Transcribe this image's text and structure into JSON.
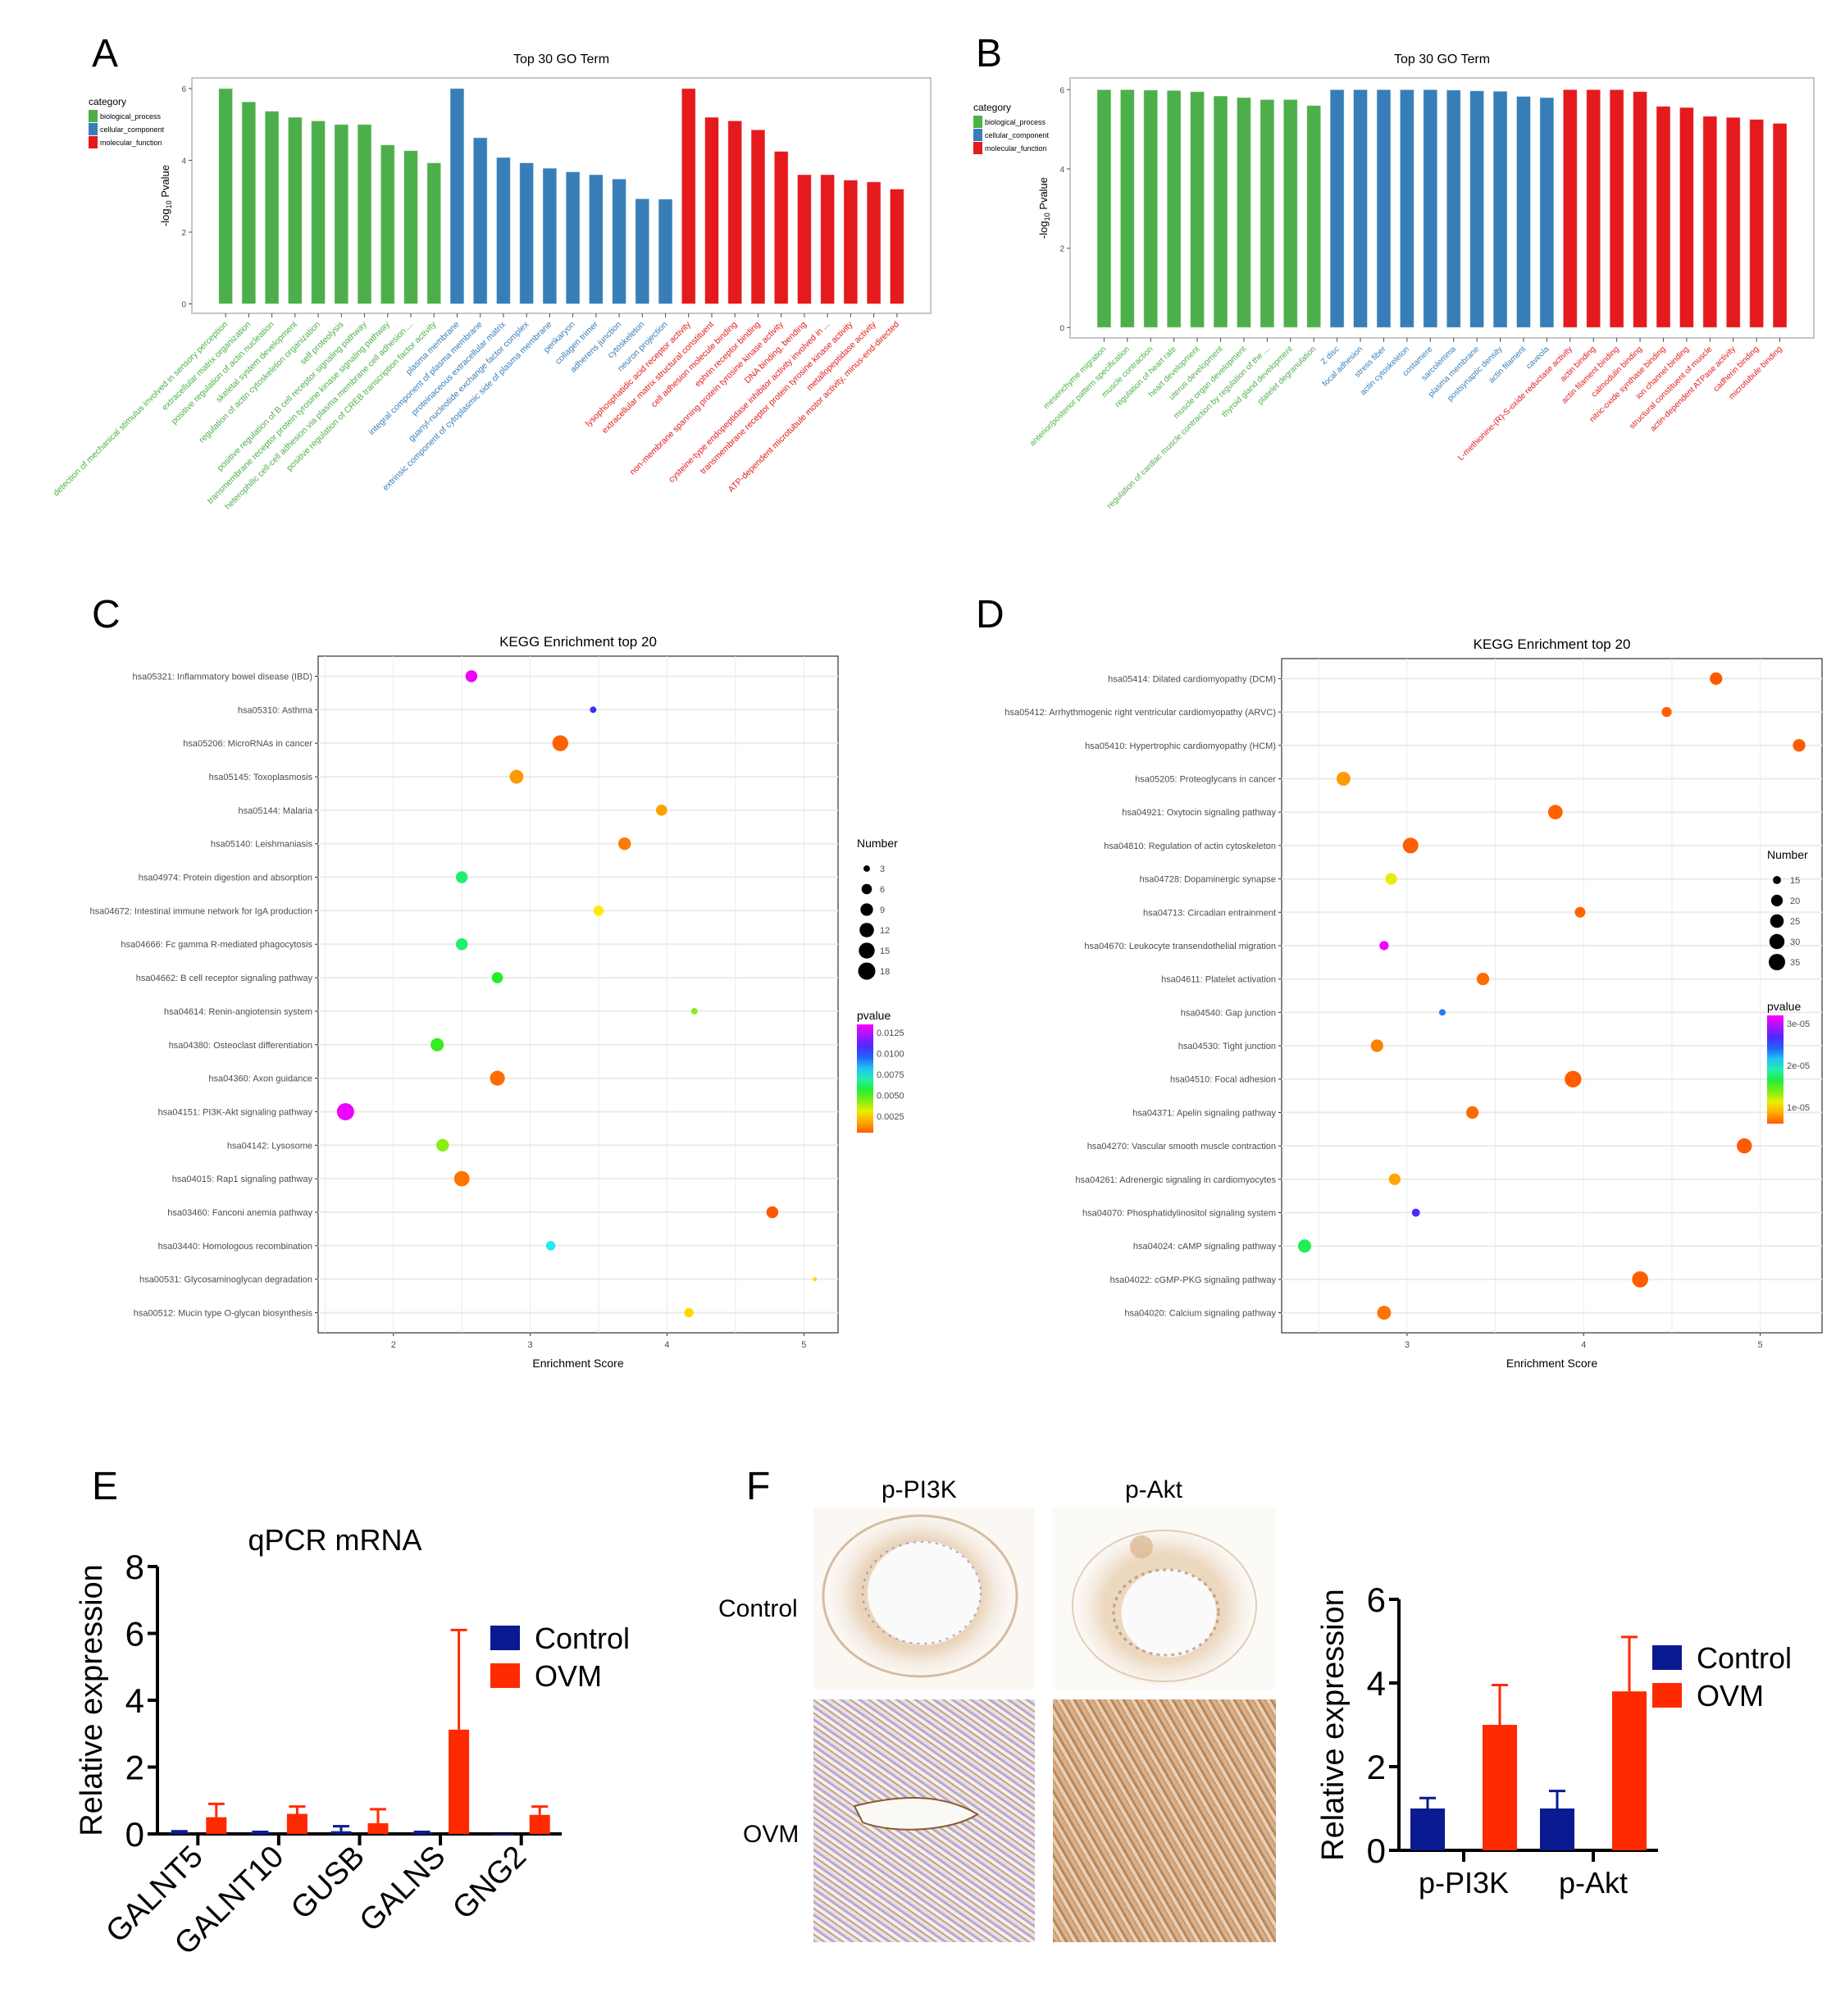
{
  "panels": {
    "a": "A",
    "b": "B",
    "c": "C",
    "d": "D",
    "e": "E",
    "f": "F"
  },
  "colors": {
    "biological_process": "#4daf4a",
    "cellular_component": "#377eb8",
    "molecular_function": "#e41a1c",
    "control": "#0a1a91",
    "ovm": "#ff2a00"
  },
  "ihc": {
    "columns": [
      "p-PI3K",
      "p-Akt"
    ],
    "rows": [
      "Control",
      "OVM"
    ]
  },
  "chart_data": [
    {
      "id": "A",
      "type": "bar",
      "title": "Top 30 GO Term",
      "xlabel": "",
      "ylabel": "-log10 Pvalue",
      "ylim": [
        0,
        6.2
      ],
      "yticks": [
        0,
        2,
        4,
        6
      ],
      "legend": {
        "title": "category",
        "position": "left",
        "entries": [
          "biological_process",
          "cellular_component",
          "molecular_function"
        ]
      },
      "categories": [
        "detection of mechanical stimulus involved in sensory perception",
        "extracellular matrix organization",
        "positive regulation of actin nucleation",
        "skeletal system development",
        "regulation of actin cytoskeleton organization",
        "self proteolysis",
        "positive regulation of B cell receptor signaling pathway",
        "transmembrane receptor protein tyrosine kinase signaling pathway",
        "heterophilic cell-cell adhesion via plasma membrane cell adhesion ...",
        "positive regulation of CREB transcription factor activity",
        "plasma membrane",
        "integral component of plasma membrane",
        "proteinaceous extracellular matrix",
        "guanyl-nucleotide exchange factor complex",
        "extrinsic component of cytoplasmic side of plasma membrane",
        "perikaryon",
        "collagen trimer",
        "adherens junction",
        "cytoskeleton",
        "neuron projection",
        "lysophosphatidic acid receptor activity",
        "extracellular matrix structural constituent",
        "cell adhesion molecule binding",
        "ephrin receptor binding",
        "non-membrane spanning protein tyrosine kinase activity",
        "DNA binding, bending",
        "cysteine-type endopeptidase inhibitor activity involved in ...",
        "transmembrane receptor protein tyrosine kinase activity",
        "metallopeptidase activity",
        "ATP-dependent microtubule motor activity, minus-end-directed"
      ],
      "category_groups": [
        "biological_process",
        "biological_process",
        "biological_process",
        "biological_process",
        "biological_process",
        "biological_process",
        "biological_process",
        "biological_process",
        "biological_process",
        "biological_process",
        "cellular_component",
        "cellular_component",
        "cellular_component",
        "cellular_component",
        "cellular_component",
        "cellular_component",
        "cellular_component",
        "cellular_component",
        "cellular_component",
        "cellular_component",
        "molecular_function",
        "molecular_function",
        "molecular_function",
        "molecular_function",
        "molecular_function",
        "molecular_function",
        "molecular_function",
        "molecular_function",
        "molecular_function",
        "molecular_function"
      ],
      "values": [
        6.0,
        5.63,
        5.37,
        5.2,
        5.1,
        5.0,
        5.0,
        4.43,
        4.27,
        3.93,
        6.0,
        4.63,
        4.08,
        3.93,
        3.78,
        3.68,
        3.6,
        3.48,
        2.93,
        2.92,
        6.0,
        5.2,
        5.1,
        4.85,
        4.25,
        3.6,
        3.6,
        3.45,
        3.4,
        3.2
      ]
    },
    {
      "id": "B",
      "type": "bar",
      "title": "Top 30 GO Term",
      "xlabel": "",
      "ylabel": "-log10 Pvalue",
      "ylim": [
        0,
        6.2
      ],
      "yticks": [
        0,
        2,
        4,
        6
      ],
      "legend": {
        "title": "category",
        "position": "left",
        "entries": [
          "biological_process",
          "cellular_component",
          "molecular_function"
        ]
      },
      "categories": [
        "mesenchyme migration",
        "anterior/posterior pattern specification",
        "muscle contraction",
        "regulation of heart rate",
        "heart development",
        "uterus development",
        "muscle organ development",
        "regulation of cardiac muscle contraction by regulation of the ...",
        "thyroid gland development",
        "platelet degranulation",
        "Z disc",
        "focal adhesion",
        "stress fiber",
        "actin cytoskeleton",
        "costamere",
        "sarcolemma",
        "plasma membrane",
        "postsynaptic density",
        "actin filament",
        "caveola",
        "L-methionine-(R)-S-oxide reductase activity",
        "actin binding",
        "actin filament binding",
        "calmodulin binding",
        "nitric-oxide synthase binding",
        "ion channel binding",
        "structural constituent of muscle",
        "actin-dependent ATPase activity",
        "cadherin binding",
        "microtubule binding"
      ],
      "category_groups": [
        "biological_process",
        "biological_process",
        "biological_process",
        "biological_process",
        "biological_process",
        "biological_process",
        "biological_process",
        "biological_process",
        "biological_process",
        "biological_process",
        "cellular_component",
        "cellular_component",
        "cellular_component",
        "cellular_component",
        "cellular_component",
        "cellular_component",
        "cellular_component",
        "cellular_component",
        "cellular_component",
        "cellular_component",
        "molecular_function",
        "molecular_function",
        "molecular_function",
        "molecular_function",
        "molecular_function",
        "molecular_function",
        "molecular_function",
        "molecular_function",
        "molecular_function",
        "molecular_function"
      ],
      "values": [
        6.0,
        6.0,
        5.99,
        5.98,
        5.95,
        5.84,
        5.8,
        5.75,
        5.75,
        5.6,
        6.0,
        6.0,
        6.0,
        6.0,
        6.0,
        5.99,
        5.97,
        5.96,
        5.83,
        5.8,
        6.0,
        6.0,
        6.0,
        5.95,
        5.58,
        5.55,
        5.33,
        5.3,
        5.25,
        5.15
      ]
    },
    {
      "id": "C",
      "type": "scatter",
      "title": "KEGG Enrichment top 20",
      "xlabel": "Enrichment Score",
      "ylabel": "",
      "xlim": [
        1.45,
        5.25
      ],
      "xticks": [
        2,
        3,
        4,
        5
      ],
      "grid": true,
      "size_legend": {
        "title": "Number",
        "values": [
          3,
          6,
          9,
          12,
          15,
          18
        ],
        "position": "right"
      },
      "color_legend": {
        "title": "pvalue",
        "ticks": [
          "0.0125",
          "0.0100",
          "0.0075",
          "0.0050",
          "0.0025"
        ],
        "range": [
          0.0005,
          0.0135
        ],
        "position": "right"
      },
      "points": [
        {
          "term": "hsa05321: Inflammatory bowel disease (IBD)",
          "x": 2.57,
          "number": 8,
          "pvalue": 0.0132
        },
        {
          "term": "hsa05310: Asthma",
          "x": 3.46,
          "number": 3,
          "pvalue": 0.0105
        },
        {
          "term": "hsa05206: MicroRNAs in cancer",
          "x": 3.22,
          "number": 15,
          "pvalue": 0.0006
        },
        {
          "term": "hsa05145: Toxoplasmosis",
          "x": 2.9,
          "number": 11,
          "pvalue": 0.0015
        },
        {
          "term": "hsa05144: Malaria",
          "x": 3.96,
          "number": 7,
          "pvalue": 0.0016
        },
        {
          "term": "hsa05140: Leishmaniasis",
          "x": 3.69,
          "number": 9,
          "pvalue": 0.001
        },
        {
          "term": "hsa04974: Protein digestion and absorption",
          "x": 2.5,
          "number": 8,
          "pvalue": 0.0063
        },
        {
          "term": "hsa04672: Intestinal immune network for IgA production",
          "x": 3.5,
          "number": 6,
          "pvalue": 0.0028
        },
        {
          "term": "hsa04666: Fc gamma R-mediated phagocytosis",
          "x": 2.5,
          "number": 8,
          "pvalue": 0.0063
        },
        {
          "term": "hsa04662: B cell receptor signaling pathway",
          "x": 2.76,
          "number": 7,
          "pvalue": 0.0055
        },
        {
          "term": "hsa04614: Renin-angiotensin system",
          "x": 4.2,
          "number": 3,
          "pvalue": 0.0043
        },
        {
          "term": "hsa04380: Osteoclast differentiation",
          "x": 2.32,
          "number": 10,
          "pvalue": 0.0052
        },
        {
          "term": "hsa04360: Axon guidance",
          "x": 2.76,
          "number": 13,
          "pvalue": 0.0008
        },
        {
          "term": "hsa04151: PI3K-Akt signaling pathway",
          "x": 1.65,
          "number": 18,
          "pvalue": 0.0132
        },
        {
          "term": "hsa04142: Lysosome",
          "x": 2.36,
          "number": 9,
          "pvalue": 0.0042
        },
        {
          "term": "hsa04015: Rap1 signaling pathway",
          "x": 2.5,
          "number": 14,
          "pvalue": 0.0009
        },
        {
          "term": "hsa03460: Fanconi anemia pathway",
          "x": 4.77,
          "number": 8,
          "pvalue": 0.0005
        },
        {
          "term": "hsa03440: Homologous recombination",
          "x": 3.15,
          "number": 5,
          "pvalue": 0.0077
        },
        {
          "term": "hsa00531: Glycosaminoglycan degradation",
          "x": 5.08,
          "number": 2,
          "pvalue": 0.0025
        },
        {
          "term": "hsa00512: Mucin type O-glycan biosynthesis",
          "x": 4.16,
          "number": 5,
          "pvalue": 0.0025
        }
      ]
    },
    {
      "id": "D",
      "type": "scatter",
      "title": "KEGG Enrichment top 20",
      "xlabel": "Enrichment Score",
      "ylabel": "",
      "xlim": [
        2.29,
        5.35
      ],
      "xticks": [
        3,
        4,
        5
      ],
      "grid": true,
      "size_legend": {
        "title": "Number",
        "values": [
          15,
          20,
          25,
          30,
          35
        ],
        "position": "right"
      },
      "color_legend": {
        "title": "pvalue",
        "ticks": [
          "3e-05",
          "2e-05",
          "1e-05"
        ],
        "range": [
          5e-07,
          3.25e-05
        ],
        "position": "right"
      },
      "points": [
        {
          "term": "hsa05414: Dilated cardiomyopathy (DCM)",
          "x": 4.75,
          "number": 22,
          "pvalue": 5e-07
        },
        {
          "term": "hsa05412: Arrhythmogenic right ventricular cardiomyopathy (ARVC)",
          "x": 4.47,
          "number": 17,
          "pvalue": 6e-07
        },
        {
          "term": "hsa05410: Hypertrophic cardiomyopathy (HCM)",
          "x": 5.22,
          "number": 22,
          "pvalue": 5e-07
        },
        {
          "term": "hsa05205: Proteoglycans in cancer",
          "x": 2.64,
          "number": 26,
          "pvalue": 3e-06
        },
        {
          "term": "hsa04921: Oxytocin signaling pathway",
          "x": 3.84,
          "number": 28,
          "pvalue": 8e-07
        },
        {
          "term": "hsa04810: Regulation of actin cytoskeleton",
          "x": 3.02,
          "number": 32,
          "pvalue": 7e-07
        },
        {
          "term": "hsa04728: Dopaminergic synapse",
          "x": 2.91,
          "number": 20,
          "pvalue": 7e-06
        },
        {
          "term": "hsa04713: Circadian entrainment",
          "x": 3.98,
          "number": 18,
          "pvalue": 9e-07
        },
        {
          "term": "hsa04670: Leukocyte transendothelial migration",
          "x": 2.87,
          "number": 16,
          "pvalue": 3.2e-05
        },
        {
          "term": "hsa04611: Platelet activation",
          "x": 3.43,
          "number": 22,
          "pvalue": 1.2e-06
        },
        {
          "term": "hsa04540: Gap junction",
          "x": 3.2,
          "number": 12,
          "pvalue": 2.2e-05
        },
        {
          "term": "hsa04530: Tight junction",
          "x": 2.83,
          "number": 22,
          "pvalue": 2e-06
        },
        {
          "term": "hsa04510: Focal adhesion",
          "x": 3.94,
          "number": 36,
          "pvalue": 6e-07
        },
        {
          "term": "hsa04371: Apelin signaling pathway",
          "x": 3.37,
          "number": 22,
          "pvalue": 1.1e-06
        },
        {
          "term": "hsa04270: Vascular smooth muscle contraction",
          "x": 4.91,
          "number": 30,
          "pvalue": 5e-07
        },
        {
          "term": "hsa04261: Adrenergic signaling in cardiomyocytes",
          "x": 2.93,
          "number": 20,
          "pvalue": 3.5e-06
        },
        {
          "term": "hsa04070: Phosphatidylinositol signaling system",
          "x": 3.05,
          "number": 15,
          "pvalue": 2.6e-05
        },
        {
          "term": "hsa04024: cAMP signaling pathway",
          "x": 2.42,
          "number": 24,
          "pvalue": 1.4e-05
        },
        {
          "term": "hsa04022: cGMP-PKG signaling pathway",
          "x": 4.32,
          "number": 34,
          "pvalue": 6e-07
        },
        {
          "term": "hsa04020: Calcium signaling pathway",
          "x": 2.87,
          "number": 26,
          "pvalue": 1.5e-06
        }
      ]
    },
    {
      "id": "E",
      "type": "bar",
      "title": "qPCR mRNA",
      "xlabel": "",
      "ylabel": "Relative expression",
      "ylim": [
        0,
        8
      ],
      "yticks": [
        0,
        2,
        4,
        6,
        8
      ],
      "legend": {
        "position": "right",
        "entries": [
          "Control",
          "OVM"
        ]
      },
      "categories": [
        "GALNT5",
        "GALNT10",
        "GUSB",
        "GALNS",
        "GNG2"
      ],
      "series": [
        {
          "name": "Control",
          "values": [
            0.05,
            0.03,
            0.08,
            0.03,
            0.01
          ],
          "errors": [
            0.03,
            0.03,
            0.15,
            0.03,
            0.0
          ]
        },
        {
          "name": "OVM",
          "values": [
            0.5,
            0.6,
            0.32,
            3.12,
            0.57
          ],
          "errors": [
            0.4,
            0.22,
            0.42,
            2.98,
            0.25
          ]
        }
      ]
    },
    {
      "id": "F",
      "type": "bar",
      "title": "",
      "xlabel": "",
      "ylabel": "Relative expression",
      "ylim": [
        0,
        6
      ],
      "yticks": [
        0,
        2,
        4,
        6
      ],
      "legend": {
        "position": "right",
        "entries": [
          "Control",
          "OVM"
        ]
      },
      "categories": [
        "p-PI3K",
        "p-Akt"
      ],
      "series": [
        {
          "name": "Control",
          "values": [
            1.0,
            1.0
          ],
          "errors": [
            0.25,
            0.42
          ]
        },
        {
          "name": "OVM",
          "values": [
            3.0,
            3.8
          ],
          "errors": [
            0.95,
            1.3
          ]
        }
      ]
    }
  ]
}
